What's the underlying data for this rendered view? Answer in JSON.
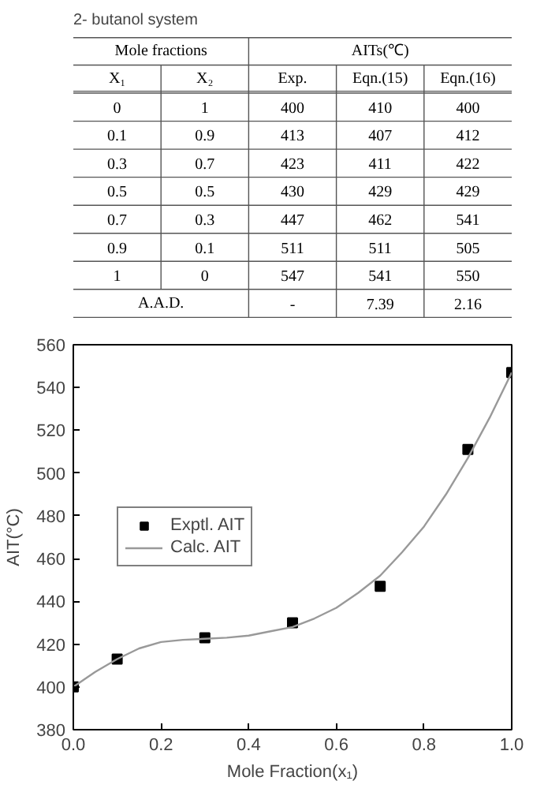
{
  "chart_data": [
    {
      "type": "other",
      "title": "2- butanol system",
      "annotations": [
        "Mole fractions",
        "AITs(℃)"
      ],
      "categories": [
        "X₁",
        "X₂",
        "Exp.",
        "Eqn.(15)",
        "Eqn.(16)"
      ],
      "cell_labels": [
        [
          "0",
          "1",
          "400",
          "410",
          "400"
        ],
        [
          "0.1",
          "0.9",
          "413",
          "407",
          "412"
        ],
        [
          "0.3",
          "0.7",
          "423",
          "411",
          "422"
        ],
        [
          "0.5",
          "0.5",
          "430",
          "429",
          "429"
        ],
        [
          "0.7",
          "0.3",
          "447",
          "462",
          "541"
        ],
        [
          "0.9",
          "0.1",
          "511",
          "511",
          "505"
        ],
        [
          "1",
          "0",
          "547",
          "541",
          "550"
        ],
        [
          "A.A.D.",
          null,
          "-",
          "7.39",
          "2.16"
        ]
      ]
    },
    {
      "type": "scatter",
      "xlabel": "Mole Fraction(x₁)",
      "ylabel": "AIT(°C)",
      "xlim": [
        0,
        1
      ],
      "ylim": [
        380,
        560
      ],
      "xticks": [
        {
          "value": 0,
          "label": "0.0"
        },
        0.2,
        0.4,
        0.6,
        0.8,
        {
          "value": 1,
          "label": "1.0"
        }
      ],
      "yticks": [
        380,
        400,
        420,
        440,
        460,
        480,
        500,
        520,
        540,
        560
      ],
      "legend": "left",
      "grid": false,
      "series": [
        {
          "name": "Exptl. AIT",
          "type": "scatter",
          "marker": "square",
          "color": "#000000",
          "x": [
            0,
            0.1,
            0.3,
            0.5,
            0.7,
            0.9,
            1
          ],
          "values": [
            400,
            413,
            423,
            430,
            447,
            511,
            547
          ]
        },
        {
          "name": "Calc. AIT",
          "type": "line",
          "color": "#999999",
          "x": [
            0,
            0.05,
            0.1,
            0.15,
            0.2,
            0.25,
            0.3,
            0.35,
            0.4,
            0.45,
            0.5,
            0.55,
            0.6,
            0.65,
            0.7,
            0.75,
            0.8,
            0.85,
            0.9,
            0.95,
            1
          ],
          "values": [
            400,
            407,
            413,
            418,
            421,
            422,
            422.5,
            423,
            424,
            426,
            428,
            432,
            437,
            444,
            452,
            463,
            475,
            490,
            507,
            526,
            547
          ]
        }
      ]
    }
  ]
}
